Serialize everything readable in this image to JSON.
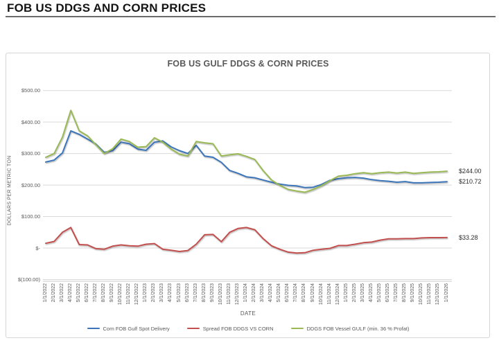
{
  "page": {
    "title": "FOB US DDGS AND CORN PRICES"
  },
  "chart": {
    "title": "FOB US GULF DDGS & CORN PRICES",
    "x_axis_title": "DATE",
    "y_axis_title": "DOLLARS PER METRIC TON"
  },
  "chart_data": {
    "type": "line",
    "title": "FOB US GULF DDGS & CORN PRICES",
    "xlabel": "DATE",
    "ylabel": "DOLLARS PER METRIC TON",
    "ylim": [
      -100,
      500
    ],
    "grid": "horizontal",
    "legend_position": "bottom",
    "y_ticks": [
      {
        "label": "$500.00",
        "value": 500
      },
      {
        "label": "$400.00",
        "value": 400
      },
      {
        "label": "$300.00",
        "value": 300
      },
      {
        "label": "$200.00",
        "value": 200
      },
      {
        "label": "$100.00",
        "value": 100
      },
      {
        "label": "$-",
        "value": 0
      },
      {
        "label": "$(100.00)",
        "value": -100
      }
    ],
    "x": [
      "1/1/2022",
      "2/1/2022",
      "3/1/2022",
      "4/1/2022",
      "5/1/2022",
      "6/1/2022",
      "7/1/2022",
      "8/1/2022",
      "9/1/2022",
      "10/1/2022",
      "11/1/2022",
      "12/1/2022",
      "1/1/2023",
      "2/1/2023",
      "3/1/2023",
      "4/1/2023",
      "5/1/2023",
      "6/1/2023",
      "7/1/2023",
      "8/1/2023",
      "9/1/2023",
      "10/1/2023",
      "11/1/2023",
      "12/1/2023",
      "1/1/2024",
      "2/1/2024",
      "3/1/2024",
      "4/1/2024",
      "5/1/2024",
      "6/1/2024",
      "7/1/2024",
      "8/1/2024",
      "9/1/2024",
      "10/1/2024",
      "11/1/2024",
      "12/1/2024",
      "1/1/2025",
      "2/1/2025",
      "3/1/2025",
      "4/1/2025",
      "5/1/2025",
      "6/1/2025",
      "7/1/2025",
      "8/1/2025",
      "9/1/2025",
      "10/1/2025",
      "11/1/2025",
      "12/1/2025",
      "1/1/2026"
    ],
    "series": [
      {
        "name": "Corn FOB Gulf Spot Delivery",
        "color": "#3C74B9",
        "end_label": "$210.72",
        "values": [
          273,
          279,
          302,
          372,
          361,
          346,
          330,
          304,
          309,
          336,
          331,
          314,
          310,
          336,
          340,
          321,
          309,
          300,
          326,
          292,
          288,
          272,
          246,
          237,
          226,
          223,
          216,
          209,
          203,
          199,
          197,
          192,
          193,
          202,
          215,
          220,
          223,
          224,
          222,
          217,
          214,
          212,
          209,
          211,
          207,
          207,
          208,
          209,
          210.72
        ]
      },
      {
        "name": "Spread FOB DDGS VS CORN",
        "color": "#C1504E",
        "end_label": "$33.28",
        "values": [
          15,
          21,
          50,
          65,
          11,
          10,
          -2,
          -4,
          6,
          10,
          7,
          6,
          12,
          14,
          -4,
          -7,
          -11,
          -8,
          12,
          42,
          43,
          20,
          50,
          62,
          65,
          58,
          30,
          7,
          -4,
          -13,
          -16,
          -15,
          -7,
          -4,
          -1,
          8,
          8,
          12,
          17,
          19,
          25,
          29,
          29,
          30,
          30,
          32,
          33,
          33,
          33.28
        ]
      },
      {
        "name": "DDGS FOB Vessel GULF  (min. 36 % Profat)",
        "color": "#98B954",
        "end_label": "$244.00",
        "values": [
          288,
          300,
          352,
          437,
          372,
          356,
          328,
          300,
          315,
          346,
          338,
          320,
          322,
          350,
          336,
          314,
          298,
          292,
          338,
          334,
          331,
          292,
          296,
          299,
          291,
          281,
          246,
          216,
          199,
          186,
          181,
          177,
          186,
          198,
          214,
          228,
          231,
          236,
          239,
          236,
          239,
          241,
          238,
          241,
          237,
          239,
          241,
          242,
          244
        ]
      }
    ]
  }
}
